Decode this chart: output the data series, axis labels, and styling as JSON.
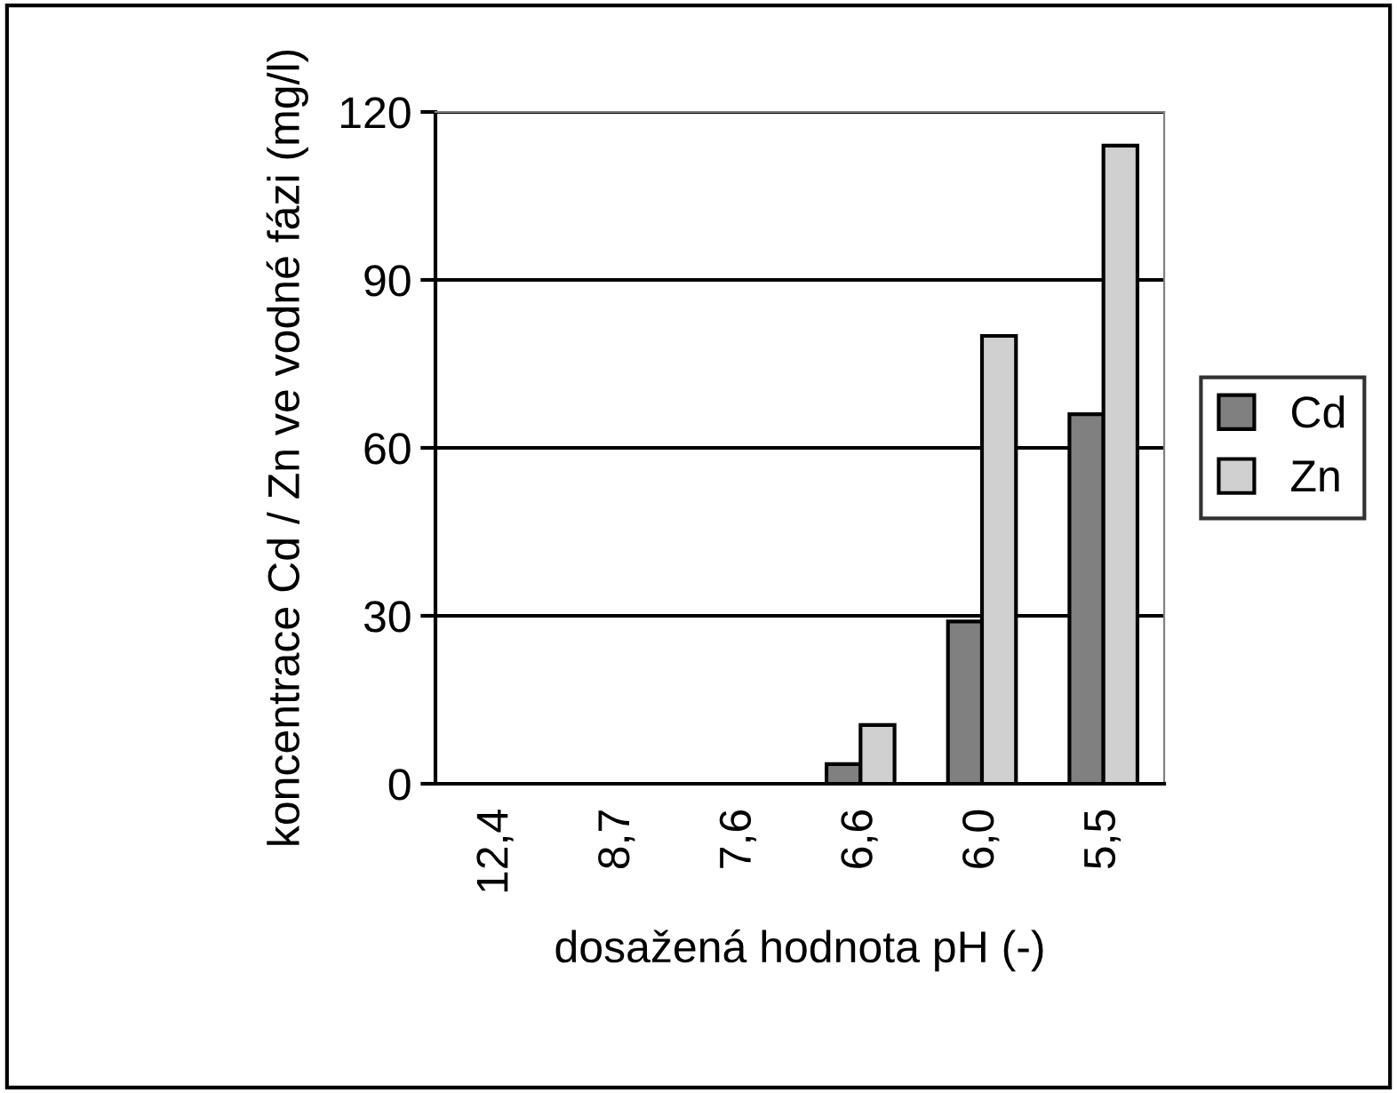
{
  "chart_data": {
    "type": "bar",
    "xlabel": "dosažená hodnota pH (-)",
    "ylabel": "koncentrace Cd / Zn ve vodné fázi (mg/l)",
    "categories": [
      "12,4",
      "8,7",
      "7,6",
      "6,6",
      "6,0",
      "5,5"
    ],
    "series": [
      {
        "name": "Cd",
        "color": "#808080",
        "values": [
          null,
          null,
          null,
          3.5,
          29,
          66
        ]
      },
      {
        "name": "Zn",
        "color": "#d0d0d0",
        "values": [
          null,
          null,
          null,
          10.5,
          80,
          114
        ]
      }
    ],
    "ylim": [
      0,
      120
    ],
    "yticks": [
      0,
      30,
      60,
      90,
      120
    ],
    "grid": "y",
    "legend": "right"
  }
}
